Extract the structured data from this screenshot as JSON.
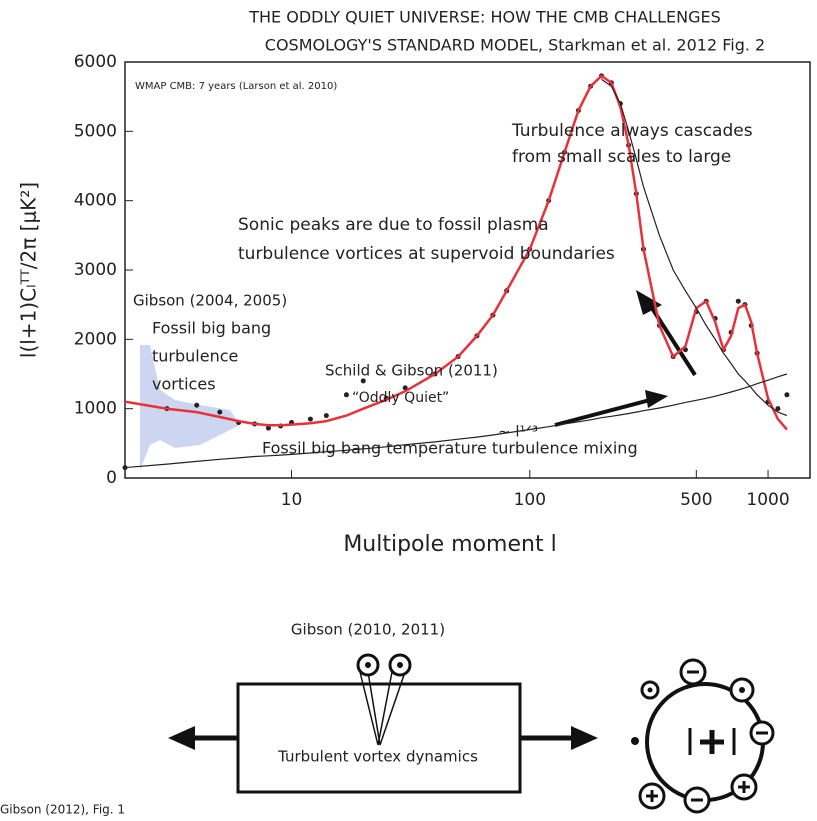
{
  "chart_data": {
    "type": "line",
    "title": "THE ODDLY QUIET UNIVERSE: HOW THE CMB CHALLENGES",
    "subtitle": "COSMOLOGY'S STANDARD MODEL,  Starkman et al. 2012 Fig. 2",
    "xlabel": "Multipole moment  l",
    "ylabel": "l(l+1)Cₗᵀᵀ/2π [μK²]",
    "xscale": "log",
    "xlim": [
      2,
      1500
    ],
    "xticks": [
      10,
      100,
      500,
      1000
    ],
    "ylim": [
      0,
      6000
    ],
    "yticks": [
      0,
      1000,
      2000,
      3000,
      4000,
      5000,
      6000
    ],
    "x": [
      2,
      3,
      4,
      5,
      6,
      7,
      8,
      9,
      10,
      12,
      14,
      17,
      20,
      25,
      30,
      40,
      50,
      60,
      70,
      80,
      100,
      120,
      140,
      160,
      180,
      200,
      220,
      240,
      260,
      280,
      300,
      350,
      400,
      450,
      500,
      550,
      600,
      650,
      700,
      750,
      800,
      850,
      900,
      1000,
      1100,
      1200
    ],
    "series": [
      {
        "color": "#222222",
        "style": "points",
        "values": [
          150,
          1000,
          1050,
          950,
          800,
          780,
          720,
          750,
          800,
          850,
          900,
          1200,
          1400,
          1150,
          1300,
          1500,
          1750,
          2050,
          2350,
          2700,
          3300,
          4000,
          4700,
          5300,
          5650,
          5800,
          5700,
          5400,
          4800,
          4100,
          3300,
          2200,
          1750,
          1850,
          2400,
          2550,
          2300,
          1850,
          2100,
          2550,
          2500,
          2200,
          1800,
          1100,
          1000,
          1200
        ]
      },
      {
        "color": "#e8313a",
        "style": "line",
        "values": [
          1100,
          1000,
          950,
          880,
          820,
          780,
          760,
          760,
          770,
          790,
          820,
          900,
          1000,
          1130,
          1250,
          1500,
          1750,
          2050,
          2350,
          2700,
          3300,
          4000,
          4700,
          5300,
          5650,
          5800,
          5700,
          5350,
          4800,
          4100,
          3300,
          2200,
          1750,
          1900,
          2450,
          2550,
          2250,
          1850,
          2050,
          2450,
          2500,
          2250,
          1800,
          1150,
          850,
          700
        ]
      },
      {
        "color": "#222222",
        "style": "thin",
        "values": [
          null,
          null,
          null,
          null,
          null,
          null,
          null,
          null,
          null,
          null,
          null,
          null,
          null,
          null,
          null,
          null,
          null,
          null,
          null,
          null,
          null,
          null,
          null,
          null,
          null,
          5750,
          5650,
          5400,
          5000,
          4600,
          4200,
          3500,
          3000,
          2700,
          2450,
          2200,
          2000,
          1800,
          1650,
          1500,
          1400,
          1300,
          1200,
          1050,
          950,
          900
        ]
      },
      {
        "color": "#222222",
        "style": "thin",
        "values": [
          150,
          200,
          240,
          270,
          290,
          310,
          320,
          330,
          340,
          360,
          380,
          400,
          420,
          450,
          480,
          520,
          560,
          590,
          620,
          650,
          700,
          740,
          780,
          810,
          840,
          870,
          890,
          910,
          930,
          950,
          970,
          1010,
          1050,
          1090,
          1120,
          1150,
          1180,
          1210,
          1240,
          1270,
          1300,
          1330,
          1360,
          1410,
          1460,
          1500
        ]
      }
    ],
    "annotations": [
      "WMAP CMB: 7 years (Larson et al. 2010)",
      "Turbulence always cascades",
      "from small scales to large",
      "Sonic peaks are due to fossil plasma",
      "turbulence vortices at supervoid boundaries",
      "Gibson (2004, 2005)",
      "Fossil big bang",
      "turbulence",
      "vortices",
      "Schild & Gibson (2011)",
      "“Oddly Quiet”",
      "~ l¹ᐟ³",
      "Fossil big bang temperature turbulence mixing"
    ]
  },
  "diagram": {
    "title": "Gibson (2010, 2011)",
    "box_label": "Turbulent vortex dynamics",
    "caption": "Gibson (2012), Fig. 1"
  }
}
